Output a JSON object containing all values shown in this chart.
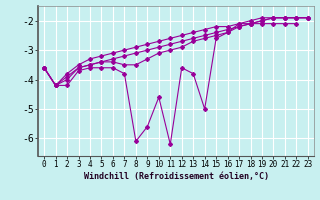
{
  "xlabel": "Windchill (Refroidissement éolien,°C)",
  "background_color": "#c8f0f0",
  "line_color": "#990099",
  "grid_color": "#ffffff",
  "xlim": [
    -0.5,
    23.5
  ],
  "ylim": [
    -6.6,
    -1.5
  ],
  "yticks": [
    -6,
    -5,
    -4,
    -3,
    -2
  ],
  "xticks": [
    0,
    1,
    2,
    3,
    4,
    5,
    6,
    7,
    8,
    9,
    10,
    11,
    12,
    13,
    14,
    15,
    16,
    17,
    18,
    19,
    20,
    21,
    22,
    23
  ],
  "series": [
    [
      -3.6,
      -4.2,
      -4.2,
      -3.7,
      -3.6,
      -3.6,
      -3.6,
      -3.8,
      -6.1,
      -5.6,
      -4.6,
      -6.2,
      -3.6,
      -3.8,
      -5.0,
      -2.6,
      -2.4,
      -2.1,
      -2.1,
      -2.1,
      -2.1,
      -2.1,
      -2.1,
      null
    ],
    [
      -3.6,
      -4.2,
      -4.0,
      -3.6,
      -3.5,
      -3.4,
      -3.4,
      -3.5,
      -3.5,
      -3.3,
      -3.1,
      -3.0,
      -2.9,
      -2.7,
      -2.6,
      -2.5,
      -2.4,
      -2.2,
      -2.1,
      -2.0,
      -1.9,
      -1.9,
      -1.9,
      -1.9
    ],
    [
      -3.6,
      -4.2,
      -3.8,
      -3.5,
      -3.3,
      -3.2,
      -3.1,
      -3.0,
      -2.9,
      -2.8,
      -2.7,
      -2.6,
      -2.5,
      -2.4,
      -2.3,
      -2.2,
      -2.2,
      -2.1,
      -2.0,
      -1.9,
      -1.9,
      -1.9,
      -1.9,
      -1.9
    ],
    [
      -3.6,
      -4.2,
      -3.9,
      -3.6,
      -3.5,
      -3.4,
      -3.3,
      -3.2,
      -3.1,
      -3.0,
      -2.9,
      -2.8,
      -2.7,
      -2.6,
      -2.5,
      -2.4,
      -2.3,
      -2.2,
      -2.1,
      -2.0,
      -1.9,
      -1.9,
      -1.9,
      -1.9
    ]
  ]
}
